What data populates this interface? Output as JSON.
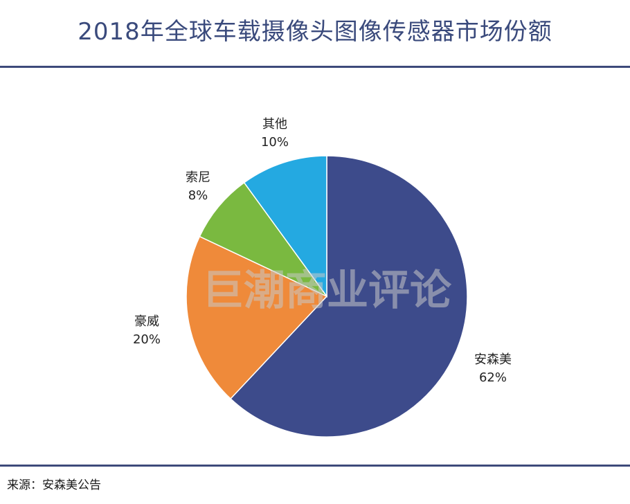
{
  "title": "2018年全球车载摄像头图像传感器市场份额",
  "source": "来源：安森美公告",
  "watermark": "巨潮商业评论",
  "chart_data": {
    "type": "pie",
    "title": "2018年全球车载摄像头图像传感器市场份额",
    "slices": [
      {
        "name": "安森美",
        "value": 62,
        "label": "62%",
        "color": "#3d4b8b"
      },
      {
        "name": "豪威",
        "value": 20,
        "label": "20%",
        "color": "#ef8a3a"
      },
      {
        "name": "索尼",
        "value": 8,
        "label": "8%",
        "color": "#7ab940"
      },
      {
        "name": "其他",
        "value": 10,
        "label": "10%",
        "color": "#24a9e1"
      }
    ]
  }
}
